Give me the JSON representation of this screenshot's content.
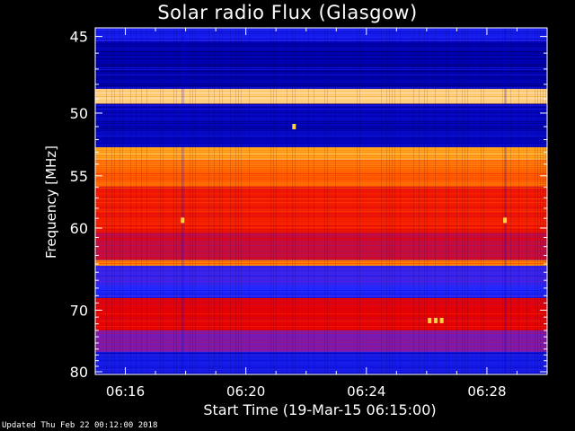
{
  "footer": {
    "updated": "Updated Thu Feb 22 00:12:00 2018"
  },
  "chart_data": {
    "type": "heatmap",
    "title": "Solar radio Flux (Glasgow)",
    "xlabel": "Start Time (19-Mar-15 06:15:00)",
    "ylabel": "Frequency [MHz]",
    "x_ticks": [
      "06:16",
      "06:20",
      "06:24",
      "06:28"
    ],
    "x_tick_minutes": [
      1,
      5,
      9,
      13
    ],
    "xlim_minutes": [
      0,
      15
    ],
    "y_ticks": [
      45,
      50,
      55,
      60,
      70,
      80
    ],
    "ylim": [
      44.5,
      80.5
    ],
    "y_scale": "reciprocal",
    "colormap": [
      "#00003c",
      "#0000b4",
      "#1e28ff",
      "#6a1cc8",
      "#b4145a",
      "#e60000",
      "#ff3c00",
      "#ff9600",
      "#ffe6b4"
    ],
    "frequency_bands": [
      {
        "from": 44.5,
        "to": 45.3,
        "level": 0.22
      },
      {
        "from": 45.3,
        "to": 48.3,
        "level": 0.12
      },
      {
        "from": 48.3,
        "to": 49.3,
        "level": 0.97
      },
      {
        "from": 49.3,
        "to": 52.6,
        "level": 0.14
      },
      {
        "from": 52.6,
        "to": 53.6,
        "level": 0.9
      },
      {
        "from": 53.6,
        "to": 56.0,
        "level": 0.8
      },
      {
        "from": 56.0,
        "to": 60.5,
        "level": 0.68
      },
      {
        "from": 60.5,
        "to": 63.5,
        "level": 0.55
      },
      {
        "from": 63.5,
        "to": 64.2,
        "level": 0.85
      },
      {
        "from": 64.2,
        "to": 66.5,
        "level": 0.3
      },
      {
        "from": 66.5,
        "to": 68.3,
        "level": 0.25
      },
      {
        "from": 68.3,
        "to": 73.0,
        "level": 0.62
      },
      {
        "from": 73.0,
        "to": 76.5,
        "level": 0.4
      },
      {
        "from": 76.5,
        "to": 80.5,
        "level": 0.2
      }
    ],
    "bursts": [
      {
        "minute": 2.9,
        "freq": 59.2
      },
      {
        "minute": 13.6,
        "freq": 59.2
      },
      {
        "minute": 6.6,
        "freq": 51.0
      },
      {
        "minute": 11.1,
        "freq": 71.5
      },
      {
        "minute": 11.3,
        "freq": 71.5
      },
      {
        "minute": 11.5,
        "freq": 71.5
      }
    ],
    "grid": false,
    "legend": "none"
  }
}
